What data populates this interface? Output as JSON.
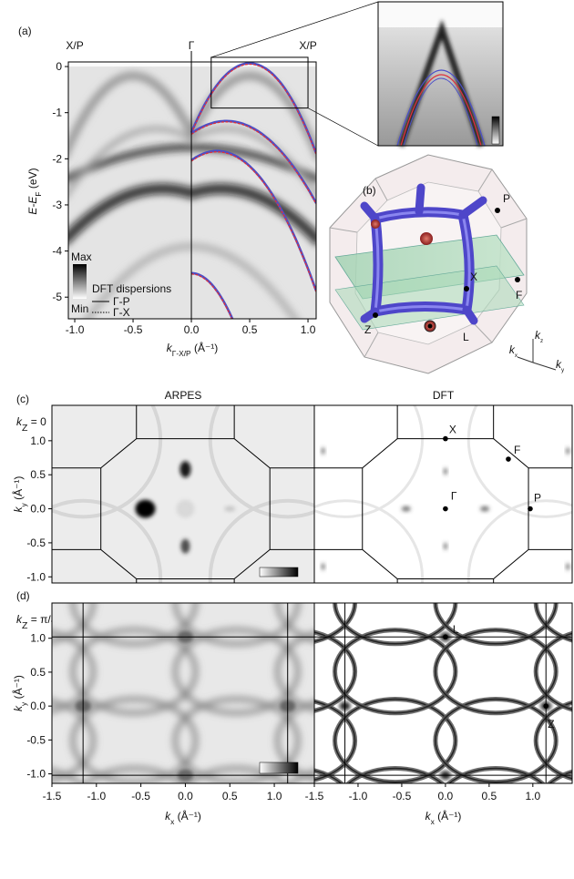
{
  "panel_a": {
    "label": "(a)",
    "high_symmetry": [
      "X/P",
      "Γ",
      "X/P"
    ],
    "xlim": [
      -1.055,
      1.07
    ],
    "ylim": [
      -5.47,
      0.1
    ],
    "xticks": [
      {
        "value": -1,
        "label": "-1.0"
      },
      {
        "value": -0.5,
        "label": "-0.5"
      },
      {
        "value": 0,
        "label": "0.0"
      },
      {
        "value": 0.5,
        "label": "0.5"
      },
      {
        "value": 1,
        "label": "1.0"
      }
    ],
    "yticks": [
      0,
      -1,
      -2,
      -3,
      -4,
      -5
    ],
    "ylabel": {
      "main": "E-E",
      "sub": "F",
      "unit": " (eV)"
    },
    "xlabel": {
      "main": "k",
      "sub": "Γ-X/P",
      "unit": " (Å⁻¹)"
    },
    "colorbar": {
      "max": "Max",
      "min": "Min"
    },
    "legend": {
      "title": "DFT dispersions",
      "entries": [
        "Γ-P",
        "Γ-X"
      ]
    }
  },
  "panel_b": {
    "label": "(b)",
    "points": [
      "P",
      "X",
      "F",
      "Z",
      "L"
    ],
    "axes": [
      {
        "main": "k",
        "sub": "z"
      },
      {
        "main": "k",
        "sub": "x"
      },
      {
        "main": "k",
        "sub": "y"
      }
    ]
  },
  "panel_c": {
    "label": "(c)",
    "titles": [
      "ARPES",
      "DFT"
    ],
    "kz": {
      "main": "k",
      "sub": "Z",
      "value": " = 0"
    },
    "points": [
      "X",
      "F",
      "Γ",
      "P"
    ],
    "xlim": [
      -1.5,
      1.45
    ],
    "ylim": [
      -1.09,
      1.52
    ],
    "yticks": [
      {
        "value": 1,
        "label": "1.0"
      },
      {
        "value": 0.5,
        "label": "0.5"
      },
      {
        "value": 0,
        "label": "0.0"
      },
      {
        "value": -0.5,
        "label": "-0.5"
      },
      {
        "value": -1,
        "label": "-1.0"
      }
    ],
    "ylabel": {
      "main": "k",
      "sub": "y",
      "unit": " (Å⁻¹)"
    }
  },
  "panel_d": {
    "label": "(d)",
    "kz": {
      "main": "k",
      "sub": "Z",
      "value": " = π/a"
    },
    "points": [
      "L",
      "Z"
    ],
    "xlim": [
      -1.5,
      1.45
    ],
    "ylim": [
      -1.14,
      1.52
    ],
    "xticks": [
      {
        "value": -1.5,
        "label": "-1.5"
      },
      {
        "value": -1,
        "label": "-1.0"
      },
      {
        "value": -0.5,
        "label": "-0.5"
      },
      {
        "value": 0,
        "label": "0.0"
      },
      {
        "value": 0.5,
        "label": "0.5"
      },
      {
        "value": 1,
        "label": "1.0"
      }
    ],
    "yticks": [
      {
        "value": 1,
        "label": "1.0"
      },
      {
        "value": 0.5,
        "label": "0.5"
      },
      {
        "value": 0,
        "label": "0.0"
      },
      {
        "value": -0.5,
        "label": "-0.5"
      },
      {
        "value": -1,
        "label": "-1.0"
      }
    ],
    "ylabel": {
      "main": "k",
      "sub": "y",
      "unit": " (Å⁻¹)"
    },
    "xlabel": {
      "main": "k",
      "sub": "x",
      "unit": " (Å⁻¹)"
    }
  }
}
